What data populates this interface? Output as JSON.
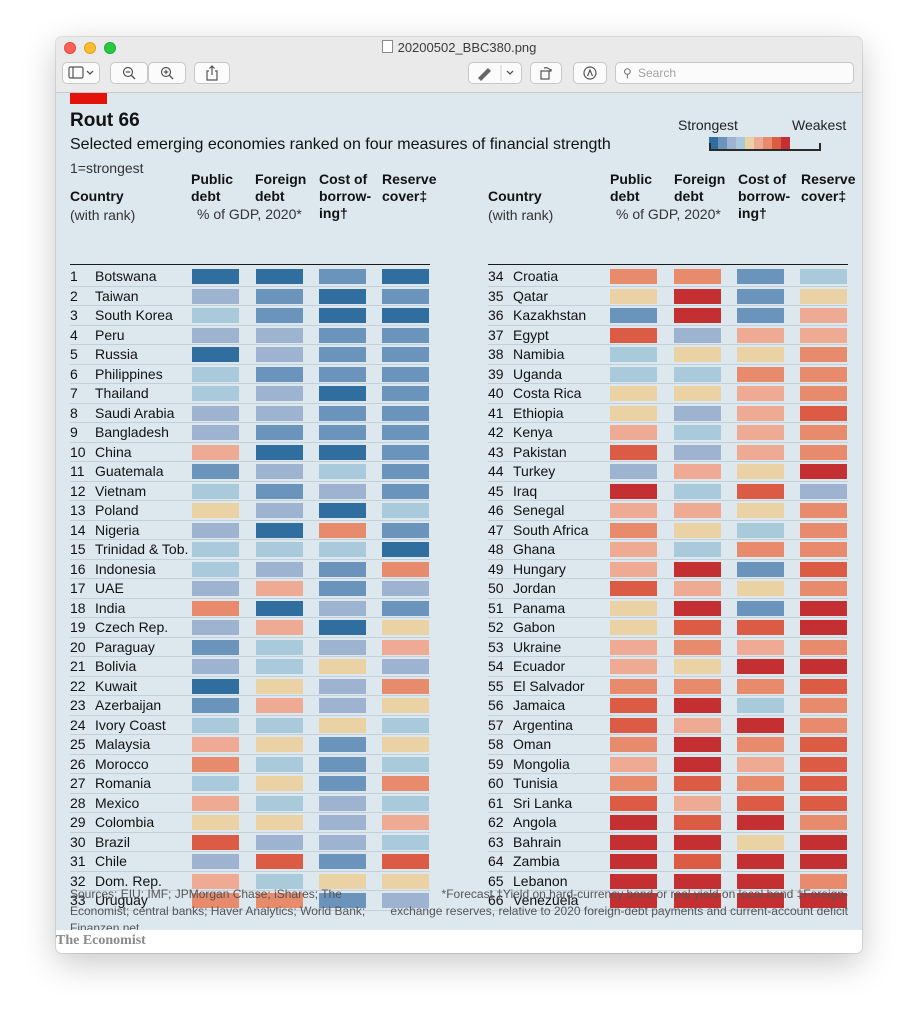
{
  "window": {
    "title": "20200502_BBC380.png",
    "search_placeholder": "Search",
    "toolbar": {
      "sidebar_icon": "sidebar-icon",
      "zoom_out_icon": "zoom-out-icon",
      "zoom_in_icon": "zoom-in-icon",
      "share_icon": "share-icon",
      "markup_icon": "pen-icon",
      "rotate_icon": "rotate-icon",
      "annotate_icon": "annotate-icon",
      "search_icon": "search-icon"
    }
  },
  "chart": {
    "title": "Rout 66",
    "subtitle": "Selected emerging economies ranked on four measures of financial strength",
    "note": "1=strongest",
    "legend": {
      "strongest": "Strongest",
      "weakest": "Weakest",
      "colors": [
        "#2f6e9e",
        "#6a94bc",
        "#9db3cf",
        "#a9cadb",
        "#ead2a4",
        "#eeaa93",
        "#e88a6c",
        "#dc5b44",
        "#c42f31"
      ]
    },
    "headers": {
      "country": "Country",
      "country_sub": "(with rank)",
      "public_1": "Public",
      "public_2": "debt",
      "foreign_1": "Foreign",
      "foreign_2": "debt",
      "pct_gdp": "% of GDP, 2020*",
      "cost_1": "Cost of",
      "cost_2": "borrow-",
      "cost_3": "ing†",
      "reserve_1": "Reserve",
      "reserve_2": "cover‡"
    },
    "palette": {
      "1": "#2f6e9e",
      "2": "#6a94bc",
      "3": "#9db3cf",
      "4": "#a9cadb",
      "5": "#ead2a4",
      "6": "#eeaa93",
      "7": "#e88a6c",
      "8": "#dc5b44",
      "9": "#c42f31"
    },
    "left_rows": [
      {
        "rank": "1",
        "country": "Botswana",
        "scores": [
          1,
          1,
          2,
          1
        ]
      },
      {
        "rank": "2",
        "country": "Taiwan",
        "scores": [
          3,
          2,
          1,
          2
        ]
      },
      {
        "rank": "3",
        "country": "South Korea",
        "scores": [
          4,
          2,
          1,
          1
        ]
      },
      {
        "rank": "4",
        "country": "Peru",
        "scores": [
          3,
          3,
          2,
          2
        ]
      },
      {
        "rank": "5",
        "country": "Russia",
        "scores": [
          1,
          3,
          2,
          2
        ]
      },
      {
        "rank": "6",
        "country": "Philippines",
        "scores": [
          4,
          2,
          2,
          2
        ]
      },
      {
        "rank": "7",
        "country": "Thailand",
        "scores": [
          4,
          3,
          1,
          2
        ]
      },
      {
        "rank": "8",
        "country": "Saudi Arabia",
        "scores": [
          3,
          3,
          2,
          2
        ]
      },
      {
        "rank": "9",
        "country": "Bangladesh",
        "scores": [
          3,
          2,
          2,
          2
        ]
      },
      {
        "rank": "10",
        "country": "China",
        "scores": [
          6,
          1,
          1,
          2
        ]
      },
      {
        "rank": "11",
        "country": "Guatemala",
        "scores": [
          2,
          3,
          4,
          2
        ]
      },
      {
        "rank": "12",
        "country": "Vietnam",
        "scores": [
          4,
          2,
          3,
          2
        ]
      },
      {
        "rank": "13",
        "country": "Poland",
        "scores": [
          5,
          3,
          1,
          4
        ]
      },
      {
        "rank": "14",
        "country": "Nigeria",
        "scores": [
          3,
          1,
          7,
          2
        ]
      },
      {
        "rank": "15",
        "country": "Trinidad & Tob.",
        "scores": [
          4,
          4,
          4,
          1
        ]
      },
      {
        "rank": "16",
        "country": "Indonesia",
        "scores": [
          4,
          3,
          2,
          7
        ]
      },
      {
        "rank": "17",
        "country": "UAE",
        "scores": [
          3,
          6,
          2,
          3
        ]
      },
      {
        "rank": "18",
        "country": "India",
        "scores": [
          7,
          1,
          3,
          2
        ]
      },
      {
        "rank": "19",
        "country": "Czech Rep.",
        "scores": [
          3,
          6,
          1,
          5
        ]
      },
      {
        "rank": "20",
        "country": "Paraguay",
        "scores": [
          2,
          4,
          3,
          6
        ]
      },
      {
        "rank": "21",
        "country": "Bolivia",
        "scores": [
          3,
          4,
          5,
          3
        ]
      },
      {
        "rank": "22",
        "country": "Kuwait",
        "scores": [
          1,
          5,
          3,
          7
        ]
      },
      {
        "rank": "23",
        "country": "Azerbaijan",
        "scores": [
          2,
          6,
          3,
          5
        ]
      },
      {
        "rank": "24",
        "country": "Ivory Coast",
        "scores": [
          4,
          4,
          5,
          4
        ]
      },
      {
        "rank": "25",
        "country": "Malaysia",
        "scores": [
          6,
          5,
          2,
          5
        ]
      },
      {
        "rank": "26",
        "country": "Morocco",
        "scores": [
          7,
          4,
          2,
          4
        ]
      },
      {
        "rank": "27",
        "country": "Romania",
        "scores": [
          4,
          5,
          2,
          7
        ]
      },
      {
        "rank": "28",
        "country": "Mexico",
        "scores": [
          6,
          4,
          3,
          4
        ]
      },
      {
        "rank": "29",
        "country": "Colombia",
        "scores": [
          5,
          5,
          3,
          6
        ]
      },
      {
        "rank": "30",
        "country": "Brazil",
        "scores": [
          8,
          3,
          3,
          4
        ]
      },
      {
        "rank": "31",
        "country": "Chile",
        "scores": [
          3,
          8,
          2,
          8
        ]
      },
      {
        "rank": "32",
        "country": "Dom. Rep.",
        "scores": [
          6,
          4,
          5,
          5
        ]
      },
      {
        "rank": "33",
        "country": "Uruguay",
        "scores": [
          7,
          7,
          2,
          3
        ]
      }
    ],
    "right_rows": [
      {
        "rank": "34",
        "country": "Croatia",
        "scores": [
          7,
          7,
          2,
          4
        ]
      },
      {
        "rank": "35",
        "country": "Qatar",
        "scores": [
          5,
          9,
          2,
          5
        ]
      },
      {
        "rank": "36",
        "country": "Kazakhstan",
        "scores": [
          2,
          9,
          2,
          6
        ]
      },
      {
        "rank": "37",
        "country": "Egypt",
        "scores": [
          8,
          3,
          6,
          6
        ]
      },
      {
        "rank": "38",
        "country": "Namibia",
        "scores": [
          4,
          5,
          5,
          7
        ]
      },
      {
        "rank": "39",
        "country": "Uganda",
        "scores": [
          4,
          4,
          7,
          7
        ]
      },
      {
        "rank": "40",
        "country": "Costa Rica",
        "scores": [
          5,
          5,
          6,
          7
        ]
      },
      {
        "rank": "41",
        "country": "Ethiopia",
        "scores": [
          5,
          3,
          6,
          8
        ]
      },
      {
        "rank": "42",
        "country": "Kenya",
        "scores": [
          6,
          4,
          6,
          7
        ]
      },
      {
        "rank": "43",
        "country": "Pakistan",
        "scores": [
          8,
          3,
          6,
          7
        ]
      },
      {
        "rank": "44",
        "country": "Turkey",
        "scores": [
          3,
          6,
          5,
          9
        ]
      },
      {
        "rank": "45",
        "country": "Iraq",
        "scores": [
          9,
          4,
          8,
          3
        ]
      },
      {
        "rank": "46",
        "country": "Senegal",
        "scores": [
          6,
          6,
          5,
          7
        ]
      },
      {
        "rank": "47",
        "country": "South Africa",
        "scores": [
          7,
          5,
          4,
          7
        ]
      },
      {
        "rank": "48",
        "country": "Ghana",
        "scores": [
          6,
          4,
          7,
          7
        ]
      },
      {
        "rank": "49",
        "country": "Hungary",
        "scores": [
          6,
          9,
          2,
          8
        ]
      },
      {
        "rank": "50",
        "country": "Jordan",
        "scores": [
          8,
          6,
          5,
          7
        ]
      },
      {
        "rank": "51",
        "country": "Panama",
        "scores": [
          5,
          9,
          2,
          9
        ]
      },
      {
        "rank": "52",
        "country": "Gabon",
        "scores": [
          5,
          8,
          8,
          9
        ]
      },
      {
        "rank": "53",
        "country": "Ukraine",
        "scores": [
          6,
          7,
          6,
          7
        ]
      },
      {
        "rank": "54",
        "country": "Ecuador",
        "scores": [
          6,
          5,
          9,
          9
        ]
      },
      {
        "rank": "55",
        "country": "El Salvador",
        "scores": [
          7,
          7,
          7,
          8
        ]
      },
      {
        "rank": "56",
        "country": "Jamaica",
        "scores": [
          8,
          9,
          4,
          7
        ]
      },
      {
        "rank": "57",
        "country": "Argentina",
        "scores": [
          8,
          6,
          9,
          7
        ]
      },
      {
        "rank": "58",
        "country": "Oman",
        "scores": [
          7,
          9,
          7,
          8
        ]
      },
      {
        "rank": "59",
        "country": "Mongolia",
        "scores": [
          6,
          9,
          6,
          8
        ]
      },
      {
        "rank": "60",
        "country": "Tunisia",
        "scores": [
          7,
          8,
          7,
          8
        ]
      },
      {
        "rank": "61",
        "country": "Sri Lanka",
        "scores": [
          8,
          6,
          8,
          8
        ]
      },
      {
        "rank": "62",
        "country": "Angola",
        "scores": [
          9,
          8,
          9,
          7
        ]
      },
      {
        "rank": "63",
        "country": "Bahrain",
        "scores": [
          9,
          9,
          5,
          9
        ]
      },
      {
        "rank": "64",
        "country": "Zambia",
        "scores": [
          9,
          8,
          9,
          9
        ]
      },
      {
        "rank": "65",
        "country": "Lebanon",
        "scores": [
          9,
          9,
          9,
          7
        ]
      },
      {
        "rank": "66",
        "country": "Venezuela",
        "scores": [
          9,
          9,
          9,
          9
        ]
      }
    ],
    "sources": "Sources: EIU; IMF; JPMorgan Chase; iShares; The Economist; central banks; Haver Analytics; World Bank; Finanzen.net",
    "footnotes": "*Forecast   †Yield on hard-currency bond or real yield on local bond   ‡Foreign-exchange reserves, relative to 2020 foreign-debt payments and current-account deficit",
    "brand": "The Economist"
  }
}
